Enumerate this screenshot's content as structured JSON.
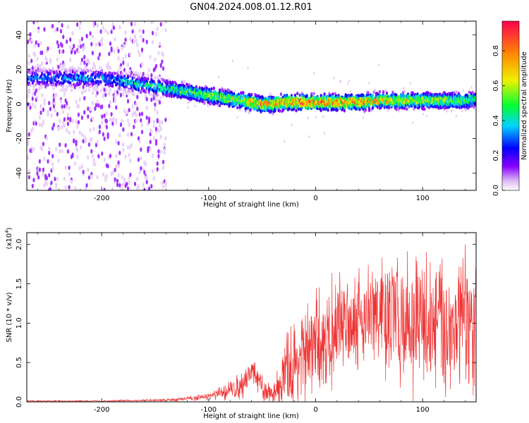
{
  "figure_title": "GN04.2024.008.01.12.R01",
  "chart_data": [
    {
      "type": "heatmap",
      "title": "GN04.2024.008.01.12.R01",
      "xlabel": "Height of straight line (km)",
      "ylabel": "Frequency (Hz)",
      "xlim": [
        -270,
        150
      ],
      "ylim": [
        -50,
        48
      ],
      "xticks": [
        -200,
        -100,
        0,
        100
      ],
      "yticks": [
        -40,
        -20,
        0,
        20,
        40
      ],
      "colorbar": {
        "label": "Normalized spectral amplitude",
        "range": [
          0.0,
          0.97
        ],
        "ticks": [
          0.0,
          0.2,
          0.4,
          0.6,
          0.8
        ],
        "colormap": [
          "#ffffff",
          "#e6c8f7",
          "#8a00ff",
          "#0000ff",
          "#00d2ff",
          "#00ff32",
          "#f0f000",
          "#ff8c00",
          "#ff0050"
        ]
      },
      "ridge": {
        "x": [
          -270,
          -200,
          -170,
          -150,
          -130,
          -110,
          -90,
          -70,
          -50,
          -40,
          -30,
          -10,
          0,
          20,
          40,
          60,
          80,
          100,
          120,
          140,
          150
        ],
        "frequency": [
          15,
          15,
          12,
          10,
          8,
          6,
          4,
          2,
          0,
          0,
          1,
          1,
          1,
          1,
          1,
          2,
          2,
          2,
          2,
          2,
          3
        ],
        "peak_amplitude": [
          0.35,
          0.4,
          0.45,
          0.5,
          0.55,
          0.6,
          0.65,
          0.75,
          0.85,
          0.85,
          0.9,
          0.95,
          0.95,
          0.9,
          0.85,
          0.8,
          0.75,
          0.7,
          0.65,
          0.6,
          0.55
        ]
      },
      "noise_region_x": [
        -270,
        -140
      ]
    },
    {
      "type": "line",
      "xlabel": "Height of straight line (km)",
      "ylabel": "SNR (10 * v/v)",
      "y_multiplier": "(x10^4)",
      "xlim": [
        -270,
        150
      ],
      "ylim": [
        0.0,
        2.15
      ],
      "xticks": [
        -200,
        -100,
        0,
        100
      ],
      "yticks": [
        0.0,
        0.5,
        1.0,
        1.5,
        2.0
      ],
      "color": "#ee3333",
      "series": [
        {
          "x": [
            -270,
            -200,
            -150,
            -130,
            -110,
            -100,
            -90,
            -80,
            -70,
            -65,
            -60,
            -55,
            -50,
            -45,
            -40,
            -35,
            -30,
            -25,
            -20,
            -15,
            -10,
            0,
            10,
            20,
            30,
            40,
            50,
            60,
            70,
            80,
            90,
            100,
            110,
            120,
            130,
            140,
            150
          ],
          "values": [
            0.01,
            0.01,
            0.02,
            0.03,
            0.05,
            0.07,
            0.1,
            0.15,
            0.2,
            0.3,
            0.4,
            0.3,
            0.15,
            0.12,
            0.1,
            0.2,
            0.3,
            0.4,
            0.45,
            0.55,
            0.6,
            0.7,
            0.8,
            0.95,
            1.05,
            1.1,
            1.1,
            1.1,
            1.05,
            1.05,
            1.0,
            1.0,
            1.0,
            1.0,
            0.95,
            0.95,
            0.9
          ],
          "peak_envelope": [
            0.02,
            0.02,
            0.04,
            0.06,
            0.09,
            0.12,
            0.2,
            0.3,
            0.4,
            0.55,
            0.6,
            0.5,
            0.4,
            0.3,
            0.2,
            0.5,
            0.8,
            1.1,
            1.2,
            1.25,
            1.35,
            1.5,
            1.6,
            1.75,
            1.8,
            1.85,
            1.95,
            2.0,
            2.05,
            2.05,
            2.05,
            2.05,
            2.1,
            2.1,
            2.1,
            2.1,
            2.1
          ]
        }
      ]
    }
  ]
}
